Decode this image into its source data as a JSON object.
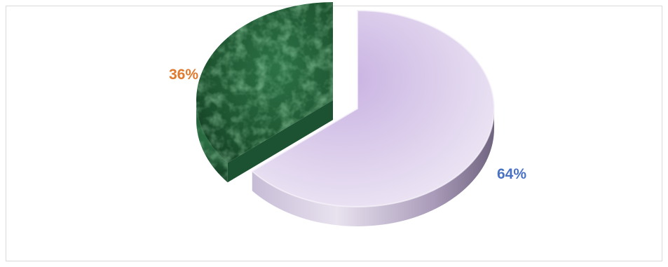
{
  "chart_data": {
    "type": "pie",
    "style": "3d-exploded",
    "slices": [
      {
        "value": 64,
        "label": "64%",
        "color": "#b8a6d3",
        "label_color": "#4a72c4"
      },
      {
        "value": 36,
        "label": "36%",
        "color": "#1f5a34",
        "label_color": "#e07a2e"
      }
    ],
    "legend": "none"
  }
}
